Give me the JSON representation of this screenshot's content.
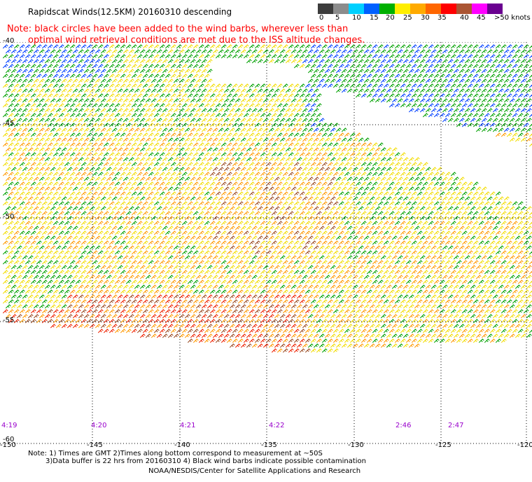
{
  "title": "Rapidscat Winds(12.5KM) 20160310 descending",
  "note_line1": "Note: black circles have been added to the wind barbs, wherever less than",
  "note_line2": "optimal wind retrieval conditions are met due to the ISS altitude changes.",
  "color_scale": {
    "labels": [
      "0",
      "5",
      "10",
      "15",
      "20",
      "25",
      "30",
      "35",
      "40",
      "45",
      ">50 knots"
    ],
    "colors": [
      "#3c3c3c",
      "#8c8c8c",
      "#00d0ff",
      "#0060ff",
      "#00b000",
      "#ffee00",
      "#ffaa00",
      "#ff6600",
      "#ff0000",
      "#aa5533",
      "#ff00ff",
      "#6a0090"
    ]
  },
  "lon_labels": [
    "-150",
    "-145",
    "-140",
    "-135",
    "-130",
    "-125",
    "-120"
  ],
  "lat_labels": [
    "-40",
    "-45",
    "-50",
    "-55",
    "-60"
  ],
  "times": [
    "4:19",
    "4:20",
    "4:21",
    "4:22",
    "2:46",
    "2:47"
  ],
  "footnote_line1": "Note: 1) Times are GMT 2)Times along bottom correspond to measurement at ~50S",
  "footnote_line2": "3)Data buffer is 22 hrs from 20160310 4) Black wind barbs indicate possible contamination",
  "credit": "NOAA/NESDIS/Center for Satellite Applications and Research"
}
